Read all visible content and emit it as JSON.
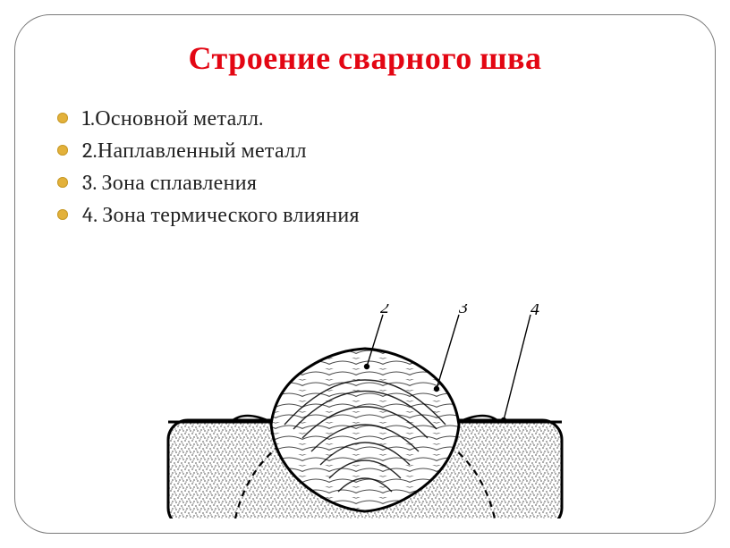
{
  "title": {
    "text": "Строение сварного шва",
    "color": "#e30613",
    "fontsize": 36
  },
  "bullet_style": {
    "marker_color": "#e3b13a",
    "marker_border_color": "#c79a2a",
    "text_color": "#222222",
    "fontsize": 24
  },
  "bullets": [
    "1.Основной металл.",
    "2.Наплавленный металл",
    "3. Зона сплавления",
    "4. Зона термического влияния"
  ],
  "diagram": {
    "type": "infographic",
    "description": "weld-seam-cross-section",
    "labels": [
      "2",
      "3",
      "4"
    ],
    "label_fontsize": 20,
    "stroke_color": "#000000",
    "fill_color": "#ffffff",
    "stipple_opacity": 0.5,
    "pointer_line_width": 1.2
  },
  "background_color": "#ffffff",
  "frame_border_color": "#7a7a7a"
}
